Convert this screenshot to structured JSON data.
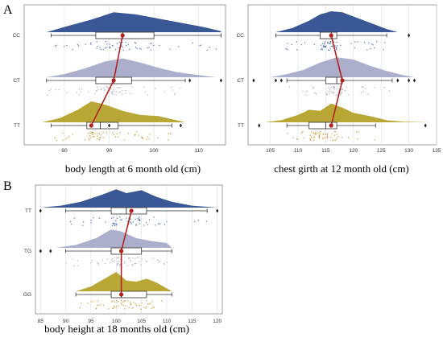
{
  "panel_labels": [
    "A",
    "B"
  ],
  "colors": {
    "top_density": "#2f4f8f",
    "mid_density": "#a8abc9",
    "bot_density": "#b5a22a",
    "top_points": "#4a6fb0",
    "mid_points": "#a8abc9",
    "bot_points": "#c89a2a",
    "mean_line": "#b0241c",
    "grid": "#dddddd",
    "frame": "#888888"
  },
  "chart_data": [
    {
      "type": "raincloud",
      "xlabel": "body length at 6 month old (cm)",
      "xlim": [
        71,
        116
      ],
      "xticks": [
        80,
        90,
        100,
        110
      ],
      "groups": [
        {
          "name": "CC",
          "box": {
            "whislo": 77,
            "q1": 87,
            "med": 93,
            "q3": 100,
            "whishi": 115
          },
          "outliers": [],
          "mean": 93,
          "density": [
            [
              76,
              0
            ],
            [
              80,
              0.25
            ],
            [
              86,
              0.6
            ],
            [
              91,
              0.95
            ],
            [
              96,
              0.85
            ],
            [
              101,
              0.65
            ],
            [
              106,
              0.45
            ],
            [
              111,
              0.25
            ],
            [
              115,
              0.05
            ]
          ]
        },
        {
          "name": "CT",
          "box": {
            "whislo": 76,
            "q1": 87,
            "med": 91,
            "q3": 95,
            "whishi": 107
          },
          "outliers": [
            108,
            115
          ],
          "mean": 91,
          "density": [
            [
              76,
              0
            ],
            [
              80,
              0.15
            ],
            [
              85,
              0.45
            ],
            [
              89,
              0.75
            ],
            [
              93,
              0.9
            ],
            [
              97,
              0.7
            ],
            [
              101,
              0.45
            ],
            [
              105,
              0.25
            ],
            [
              110,
              0.1
            ],
            [
              114,
              0
            ]
          ]
        },
        {
          "name": "TT",
          "box": {
            "whislo": 77,
            "q1": 85,
            "med": 88,
            "q3": 92,
            "whishi": 104
          },
          "outliers": [
            90,
            106
          ],
          "mean": 86,
          "density": [
            [
              75,
              0
            ],
            [
              79,
              0.2
            ],
            [
              83,
              0.6
            ],
            [
              86,
              1.0
            ],
            [
              89,
              0.85
            ],
            [
              93,
              0.55
            ],
            [
              97,
              0.35
            ],
            [
              101,
              0.3
            ],
            [
              104,
              0.15
            ],
            [
              107,
              0
            ]
          ]
        }
      ]
    },
    {
      "type": "raincloud",
      "xlabel": "chest girth at 12 month old (cm)",
      "xlim": [
        101,
        135
      ],
      "xticks": [
        105,
        110,
        115,
        120,
        125,
        130,
        135
      ],
      "groups": [
        {
          "name": "CC",
          "box": {
            "whislo": 106,
            "q1": 114,
            "med": 116,
            "q3": 117,
            "whishi": 126
          },
          "outliers": [
            130
          ],
          "mean": 116,
          "density": [
            [
              106,
              0
            ],
            [
              109,
              0.2
            ],
            [
              112,
              0.55
            ],
            [
              114,
              0.85
            ],
            [
              116,
              1.0
            ],
            [
              118,
              0.95
            ],
            [
              120,
              0.75
            ],
            [
              123,
              0.45
            ],
            [
              126,
              0.15
            ],
            [
              128,
              0
            ]
          ]
        },
        {
          "name": "CT",
          "box": {
            "whislo": 108,
            "q1": 115,
            "med": 117,
            "q3": 118,
            "whishi": 127
          },
          "outliers": [
            102,
            106,
            107,
            128,
            130,
            131
          ],
          "mean": 118,
          "density": [
            [
              105,
              0
            ],
            [
              108,
              0.15
            ],
            [
              111,
              0.35
            ],
            [
              114,
              0.7
            ],
            [
              117,
              0.95
            ],
            [
              120,
              0.85
            ],
            [
              123,
              0.55
            ],
            [
              126,
              0.3
            ],
            [
              129,
              0.1
            ],
            [
              131,
              0
            ]
          ]
        },
        {
          "name": "TT",
          "box": {
            "whislo": 108,
            "q1": 112,
            "med": 115,
            "q3": 117,
            "whishi": 124
          },
          "outliers": [
            103,
            133
          ],
          "mean": 116,
          "density": [
            [
              104,
              0
            ],
            [
              107,
              0.1
            ],
            [
              110,
              0.35
            ],
            [
              112,
              0.6
            ],
            [
              114,
              0.55
            ],
            [
              116,
              0.9
            ],
            [
              118,
              0.7
            ],
            [
              120,
              0.45
            ],
            [
              123,
              0.3
            ],
            [
              126,
              0.1
            ],
            [
              129,
              0.03
            ],
            [
              134,
              0
            ]
          ]
        }
      ]
    },
    {
      "type": "raincloud",
      "xlabel": "body height at 18 months old (cm)",
      "xlim": [
        84,
        121
      ],
      "xticks": [
        85,
        90,
        95,
        100,
        105,
        110,
        115,
        120
      ],
      "groups": [
        {
          "name": "TT",
          "box": {
            "whislo": 90,
            "q1": 99,
            "med": 102,
            "q3": 106,
            "whishi": 118
          },
          "outliers": [
            85,
            120
          ],
          "mean": 103,
          "density": [
            [
              85,
              0
            ],
            [
              89,
              0.1
            ],
            [
              93,
              0.3
            ],
            [
              97,
              0.65
            ],
            [
              100,
              0.95
            ],
            [
              102,
              0.75
            ],
            [
              105,
              0.9
            ],
            [
              108,
              0.55
            ],
            [
              111,
              0.3
            ],
            [
              115,
              0.1
            ],
            [
              120,
              0
            ]
          ]
        },
        {
          "name": "TG",
          "box": {
            "whislo": 90,
            "q1": 99,
            "med": 101,
            "q3": 105,
            "whishi": 111
          },
          "outliers": [
            85,
            87
          ],
          "mean": 101,
          "density": [
            [
              88,
              0
            ],
            [
              92,
              0.15
            ],
            [
              96,
              0.5
            ],
            [
              99,
              0.95
            ],
            [
              101,
              0.85
            ],
            [
              104,
              0.5
            ],
            [
              107,
              0.35
            ],
            [
              110,
              0.25
            ],
            [
              111,
              0
            ]
          ]
        },
        {
          "name": "GG",
          "box": {
            "whislo": 92,
            "q1": 99,
            "med": 101,
            "q3": 106,
            "whishi": 111
          },
          "outliers": [],
          "mean": 101,
          "density": [
            [
              92,
              0
            ],
            [
              95,
              0.25
            ],
            [
              98,
              0.7
            ],
            [
              100,
              1.0
            ],
            [
              102,
              0.55
            ],
            [
              104,
              0.5
            ],
            [
              106,
              0.65
            ],
            [
              108,
              0.45
            ],
            [
              111,
              0
            ]
          ]
        }
      ]
    }
  ]
}
